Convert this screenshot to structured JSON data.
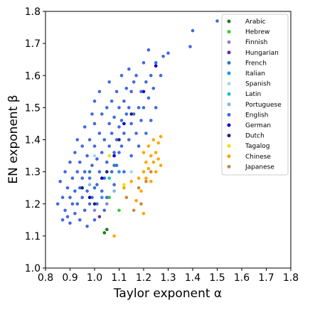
{
  "chart_data": {
    "type": "scatter",
    "xlabel": "Taylor exponent α",
    "ylabel": "EN exponent β",
    "xlim": [
      0.8,
      1.8
    ],
    "ylim": [
      1.0,
      1.8
    ],
    "xticks": [
      "0.8",
      "0.9",
      "1.0",
      "1.1",
      "1.2",
      "1.3",
      "1.4",
      "1.5",
      "1.6",
      "1.7",
      "1.8"
    ],
    "yticks": [
      "1.0",
      "1.1",
      "1.2",
      "1.3",
      "1.4",
      "1.5",
      "1.6",
      "1.7",
      "1.8"
    ],
    "grid": false,
    "legend_position": "top-right",
    "series": [
      {
        "name": "Arabic",
        "color": "#1b7a1b",
        "points": [
          [
            1.04,
            1.11
          ],
          [
            1.05,
            1.12
          ]
        ]
      },
      {
        "name": "Hebrew",
        "color": "#33cc33",
        "points": [
          [
            1.1,
            1.18
          ],
          [
            1.06,
            1.22
          ]
        ]
      },
      {
        "name": "Finnish",
        "color": "#8a83d6",
        "points": [
          [
            1.0,
            1.18
          ],
          [
            1.05,
            1.2
          ]
        ]
      },
      {
        "name": "Hungarian",
        "color": "#6a2aa8",
        "points": [
          [
            1.02,
            1.16
          ]
        ]
      },
      {
        "name": "French",
        "color": "#2b7bba",
        "points": [
          [
            1.0,
            1.25
          ],
          [
            1.08,
            1.32
          ],
          [
            0.98,
            1.3
          ]
        ]
      },
      {
        "name": "Italian",
        "color": "#1e90ff",
        "points": [
          [
            1.03,
            1.22
          ],
          [
            1.1,
            1.3
          ]
        ]
      },
      {
        "name": "Spanish",
        "color": "#a6d8f0",
        "points": [
          [
            1.0,
            1.35
          ],
          [
            1.15,
            1.3
          ]
        ]
      },
      {
        "name": "Latin",
        "color": "#12c2c2",
        "points": [
          [
            1.06,
            1.28
          ]
        ]
      },
      {
        "name": "Portuguese",
        "color": "#7fb6e8",
        "points": [
          [
            0.98,
            1.26
          ],
          [
            1.08,
            1.24
          ]
        ]
      },
      {
        "name": "English",
        "color": "#4169e1",
        "points": [
          [
            0.85,
            1.2
          ],
          [
            0.86,
            1.27
          ],
          [
            0.87,
            1.15
          ],
          [
            0.87,
            1.22
          ],
          [
            0.88,
            1.18
          ],
          [
            0.88,
            1.3
          ],
          [
            0.89,
            1.25
          ],
          [
            0.89,
            1.16
          ],
          [
            0.9,
            1.22
          ],
          [
            0.9,
            1.33
          ],
          [
            0.9,
            1.14
          ],
          [
            0.91,
            1.28
          ],
          [
            0.91,
            1.2
          ],
          [
            0.92,
            1.36
          ],
          [
            0.92,
            1.24
          ],
          [
            0.92,
            1.17
          ],
          [
            0.93,
            1.3
          ],
          [
            0.93,
            1.4
          ],
          [
            0.93,
            1.2
          ],
          [
            0.94,
            1.25
          ],
          [
            0.94,
            1.33
          ],
          [
            0.94,
            1.15
          ],
          [
            0.95,
            1.22
          ],
          [
            0.95,
            1.38
          ],
          [
            0.95,
            1.28
          ],
          [
            0.96,
            1.18
          ],
          [
            0.96,
            1.3
          ],
          [
            0.96,
            1.44
          ],
          [
            0.97,
            1.24
          ],
          [
            0.97,
            1.35
          ],
          [
            0.97,
            1.13
          ],
          [
            0.98,
            1.2
          ],
          [
            0.98,
            1.4
          ],
          [
            0.98,
            1.28
          ],
          [
            0.99,
            1.48
          ],
          [
            0.99,
            1.22
          ],
          [
            0.99,
            1.32
          ],
          [
            1.0,
            1.15
          ],
          [
            1.0,
            1.38
          ],
          [
            1.0,
            1.45
          ],
          [
            1.0,
            1.52
          ],
          [
            1.01,
            1.26
          ],
          [
            1.01,
            1.34
          ],
          [
            1.01,
            1.2
          ],
          [
            1.02,
            1.42
          ],
          [
            1.02,
            1.3
          ],
          [
            1.02,
            1.55
          ],
          [
            1.03,
            1.24
          ],
          [
            1.03,
            1.36
          ],
          [
            1.03,
            1.48
          ],
          [
            1.04,
            1.18
          ],
          [
            1.04,
            1.4
          ],
          [
            1.04,
            1.28
          ],
          [
            1.05,
            1.5
          ],
          [
            1.05,
            1.33
          ],
          [
            1.05,
            1.22
          ],
          [
            1.06,
            1.45
          ],
          [
            1.06,
            1.38
          ],
          [
            1.06,
            1.58
          ],
          [
            1.07,
            1.3
          ],
          [
            1.07,
            1.42
          ],
          [
            1.07,
            1.52
          ],
          [
            1.08,
            1.36
          ],
          [
            1.08,
            1.26
          ],
          [
            1.08,
            1.47
          ],
          [
            1.09,
            1.4
          ],
          [
            1.09,
            1.55
          ],
          [
            1.09,
            1.32
          ],
          [
            1.1,
            1.44
          ],
          [
            1.1,
            1.5
          ],
          [
            1.1,
            1.36
          ],
          [
            1.11,
            1.6
          ],
          [
            1.11,
            1.46
          ],
          [
            1.11,
            1.38
          ],
          [
            1.12,
            1.52
          ],
          [
            1.12,
            1.42
          ],
          [
            1.12,
            1.3
          ],
          [
            1.13,
            1.56
          ],
          [
            1.13,
            1.48
          ],
          [
            1.14,
            1.4
          ],
          [
            1.14,
            1.62
          ],
          [
            1.14,
            1.5
          ],
          [
            1.15,
            1.45
          ],
          [
            1.15,
            1.55
          ],
          [
            1.15,
            1.35
          ],
          [
            1.16,
            1.58
          ],
          [
            1.16,
            1.48
          ],
          [
            1.17,
            1.42
          ],
          [
            1.17,
            1.6
          ],
          [
            1.18,
            1.5
          ],
          [
            1.18,
            1.38
          ],
          [
            1.19,
            1.55
          ],
          [
            1.19,
            1.46
          ],
          [
            1.2,
            1.64
          ],
          [
            1.2,
            1.5
          ],
          [
            1.21,
            1.58
          ],
          [
            1.21,
            1.42
          ],
          [
            1.22,
            1.68
          ],
          [
            1.22,
            1.53
          ],
          [
            1.23,
            1.6
          ],
          [
            1.23,
            1.46
          ],
          [
            1.24,
            1.56
          ],
          [
            1.25,
            1.64
          ],
          [
            1.25,
            1.5
          ],
          [
            1.27,
            1.6
          ],
          [
            1.28,
            1.66
          ],
          [
            1.3,
            1.67
          ],
          [
            1.39,
            1.69
          ],
          [
            1.4,
            1.74
          ],
          [
            1.5,
            1.77
          ]
        ]
      },
      {
        "name": "German",
        "color": "#0000c8",
        "points": [
          [
            1.03,
            1.28
          ],
          [
            1.08,
            1.35
          ],
          [
            1.12,
            1.45
          ],
          [
            1.2,
            1.55
          ],
          [
            0.98,
            1.22
          ],
          [
            1.25,
            1.63
          ]
        ]
      },
      {
        "name": "Dutch",
        "color": "#1a237e",
        "points": [
          [
            1.0,
            1.2
          ],
          [
            1.05,
            1.3
          ],
          [
            1.1,
            1.4
          ],
          [
            1.15,
            1.48
          ],
          [
            0.95,
            1.25
          ]
        ]
      },
      {
        "name": "Tagalog",
        "color": "#f0e000",
        "points": [
          [
            1.06,
            1.35
          ],
          [
            1.12,
            1.26
          ]
        ]
      },
      {
        "name": "Chinese",
        "color": "#ffa500",
        "points": [
          [
            1.08,
            1.1
          ],
          [
            1.12,
            1.25
          ],
          [
            1.15,
            1.27
          ],
          [
            1.17,
            1.21
          ],
          [
            1.18,
            1.28
          ],
          [
            1.19,
            1.24
          ],
          [
            1.2,
            1.3
          ],
          [
            1.2,
            1.36
          ],
          [
            1.21,
            1.28
          ],
          [
            1.21,
            1.33
          ],
          [
            1.22,
            1.38
          ],
          [
            1.22,
            1.31
          ],
          [
            1.23,
            1.35
          ],
          [
            1.23,
            1.27
          ],
          [
            1.24,
            1.33
          ],
          [
            1.24,
            1.4
          ],
          [
            1.25,
            1.36
          ],
          [
            1.25,
            1.3
          ],
          [
            1.26,
            1.39
          ],
          [
            1.26,
            1.34
          ],
          [
            1.27,
            1.41
          ],
          [
            1.27,
            1.32
          ],
          [
            1.2,
            1.17
          ]
        ]
      },
      {
        "name": "Japanese",
        "color": "#cd853f",
        "points": [
          [
            1.13,
            1.22
          ],
          [
            1.16,
            1.18
          ],
          [
            1.18,
            1.25
          ],
          [
            1.19,
            1.2
          ],
          [
            1.21,
            1.27
          ],
          [
            1.23,
            1.3
          ]
        ]
      }
    ]
  }
}
